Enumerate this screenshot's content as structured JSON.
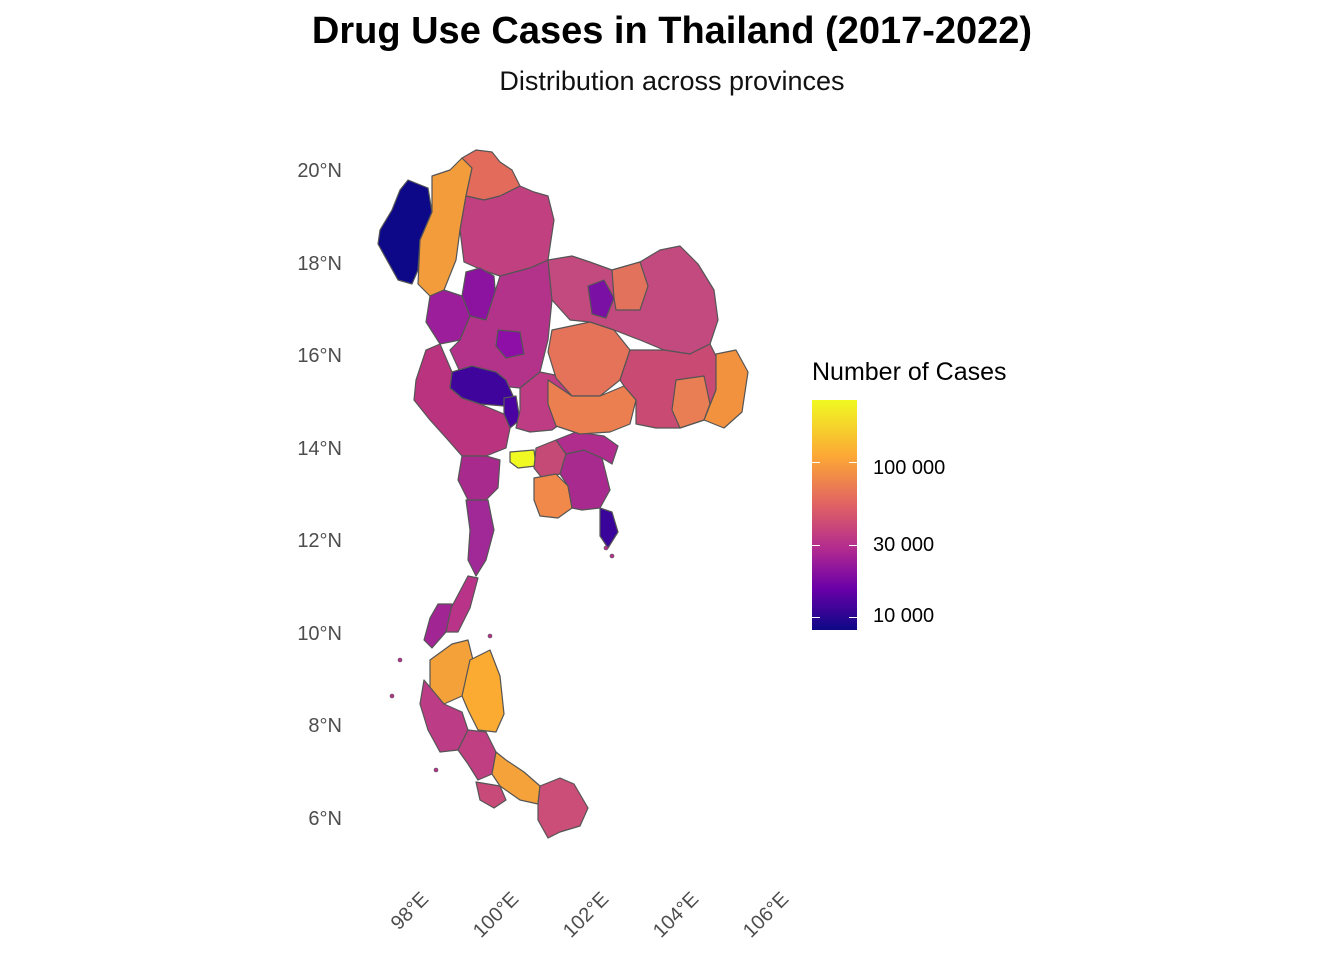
{
  "title": "Drug Use Cases in Thailand (2017-2022)",
  "subtitle": "Distribution across provinces",
  "axes": {
    "lat_labels": [
      "20°N",
      "18°N",
      "16°N",
      "14°N",
      "12°N",
      "10°N",
      "8°N",
      "6°N"
    ],
    "lon_labels": [
      "98°E",
      "100°E",
      "102°E",
      "104°E",
      "106°E"
    ]
  },
  "legend": {
    "title": "Number of Cases",
    "labels": [
      "100 000",
      "30 000",
      "10 000"
    ],
    "scale": "log",
    "palette": [
      "#0d0887",
      "#6a00a8",
      "#b12a90",
      "#e16462",
      "#fca636",
      "#f0f921"
    ]
  },
  "colors": {
    "border": "#555555",
    "axis_text": "#4d4d4d"
  }
}
